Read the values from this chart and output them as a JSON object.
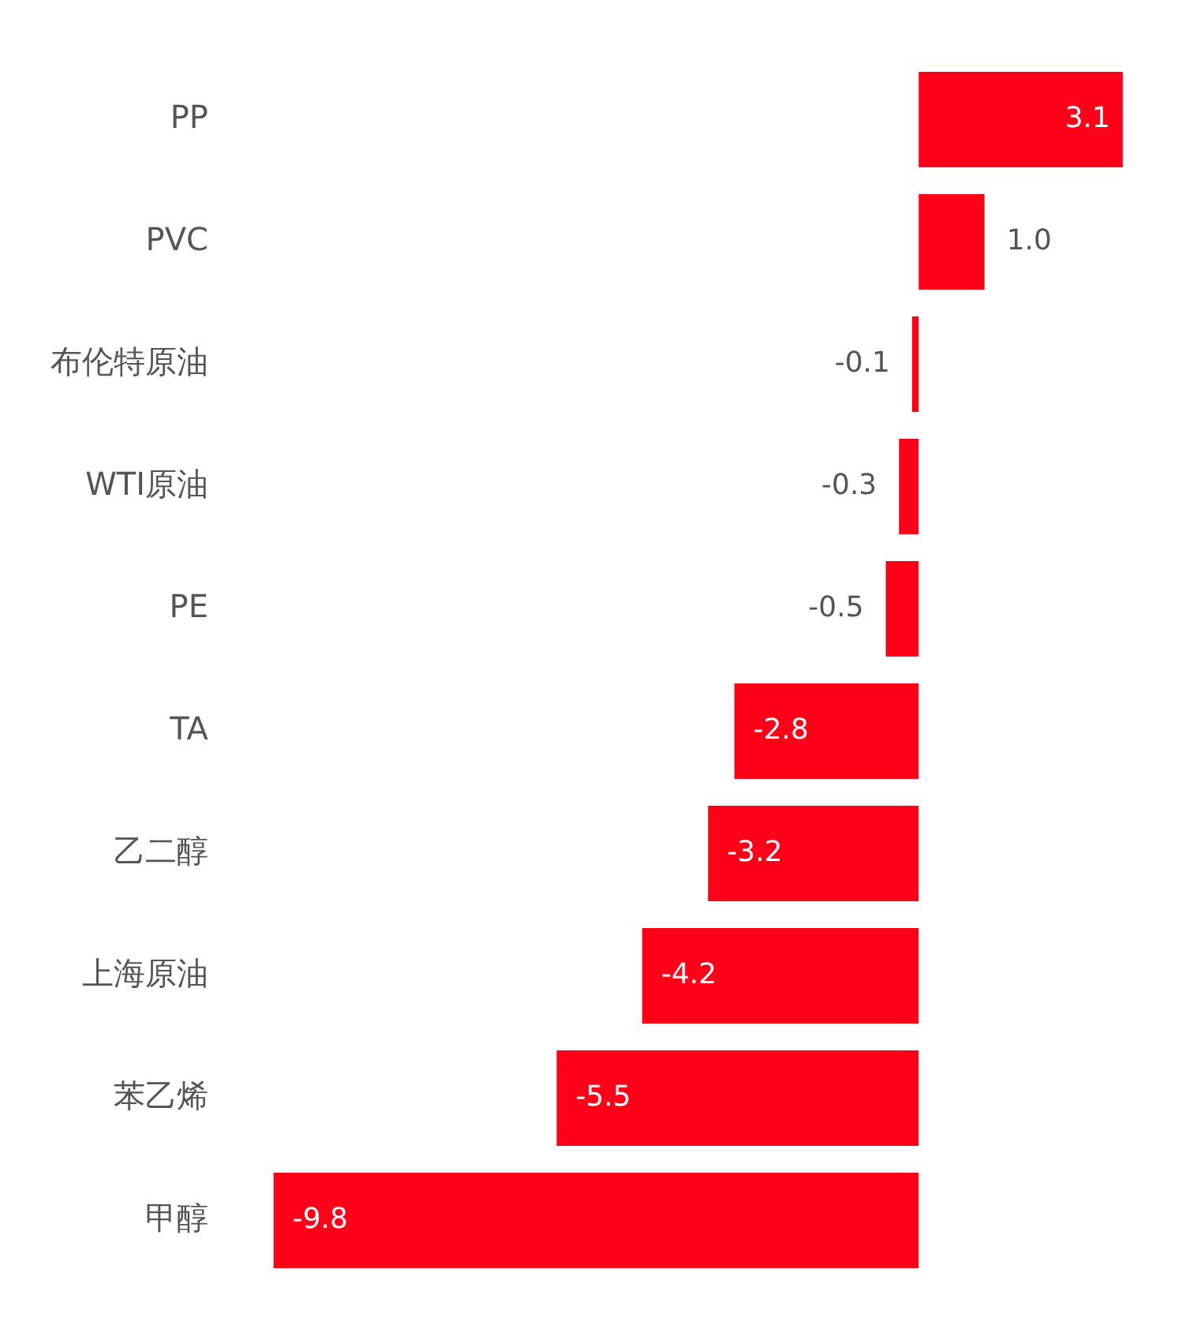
{
  "chart_data": {
    "type": "bar",
    "orientation": "horizontal",
    "legend": false,
    "grid": false,
    "value_labels": [
      "3.1",
      "1.0",
      "-0.1",
      "-0.3",
      "-0.5",
      "-2.8",
      "-3.2",
      "-4.2",
      "-5.5",
      "-9.8"
    ],
    "categories": [
      "PP",
      "PVC",
      "布伦特原油",
      "WTI原油",
      "PE",
      "TA",
      "乙二醇",
      "上海原油",
      "苯乙烯",
      "甲醇"
    ],
    "values": [
      3.1,
      1.0,
      -0.1,
      -0.3,
      -0.5,
      -2.8,
      -3.2,
      -4.2,
      -5.5,
      -9.8
    ],
    "color": "#ff0019"
  }
}
